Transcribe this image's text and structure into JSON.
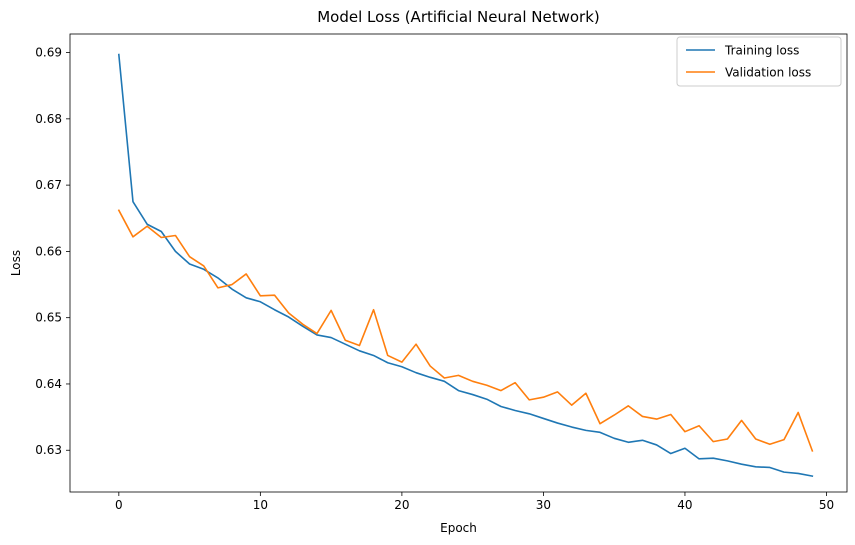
{
  "chart_data": {
    "type": "line",
    "title": "Model Loss (Artificial Neural Network)",
    "xlabel": "Epoch",
    "ylabel": "Loss",
    "xlim": [
      -3.45,
      51.45
    ],
    "ylim": [
      0.6237,
      0.6928
    ],
    "xticks": [
      0,
      10,
      20,
      30,
      40,
      50
    ],
    "yticks": [
      0.63,
      0.64,
      0.65,
      0.66,
      0.67,
      0.68,
      0.69
    ],
    "grid": false,
    "legend": "top-right",
    "x": [
      0,
      1,
      2,
      3,
      4,
      5,
      6,
      7,
      8,
      9,
      10,
      11,
      12,
      13,
      14,
      15,
      16,
      17,
      18,
      19,
      20,
      21,
      22,
      23,
      24,
      25,
      26,
      27,
      28,
      29,
      30,
      31,
      32,
      33,
      34,
      35,
      36,
      37,
      38,
      39,
      40,
      41,
      42,
      43,
      44,
      45,
      46,
      47,
      48,
      49
    ],
    "series": [
      {
        "name": "Training loss",
        "color": "#1f77b4",
        "values": [
          0.6897,
          0.6675,
          0.6641,
          0.663,
          0.66,
          0.6581,
          0.6573,
          0.656,
          0.6543,
          0.653,
          0.6524,
          0.6512,
          0.6501,
          0.6487,
          0.6474,
          0.647,
          0.646,
          0.645,
          0.6443,
          0.6432,
          0.6426,
          0.6417,
          0.641,
          0.6404,
          0.639,
          0.6384,
          0.6377,
          0.6366,
          0.636,
          0.6355,
          0.6348,
          0.6341,
          0.6335,
          0.633,
          0.6327,
          0.6318,
          0.6312,
          0.6315,
          0.6308,
          0.6295,
          0.6303,
          0.6287,
          0.6288,
          0.6284,
          0.6279,
          0.6275,
          0.6274,
          0.6267,
          0.6265,
          0.6261
        ]
      },
      {
        "name": "Validation loss",
        "color": "#ff7f0e",
        "values": [
          0.6662,
          0.6622,
          0.6638,
          0.6621,
          0.6624,
          0.6592,
          0.6578,
          0.6545,
          0.655,
          0.6566,
          0.6533,
          0.6534,
          0.6507,
          0.649,
          0.6476,
          0.6511,
          0.6466,
          0.6458,
          0.6512,
          0.6443,
          0.6433,
          0.646,
          0.6427,
          0.6409,
          0.6413,
          0.6404,
          0.6398,
          0.639,
          0.6402,
          0.6376,
          0.638,
          0.6388,
          0.6368,
          0.6386,
          0.634,
          0.6353,
          0.6367,
          0.6351,
          0.6347,
          0.6354,
          0.6328,
          0.6337,
          0.6313,
          0.6317,
          0.6345,
          0.6317,
          0.6309,
          0.6316,
          0.6357,
          0.6299
        ]
      }
    ]
  }
}
